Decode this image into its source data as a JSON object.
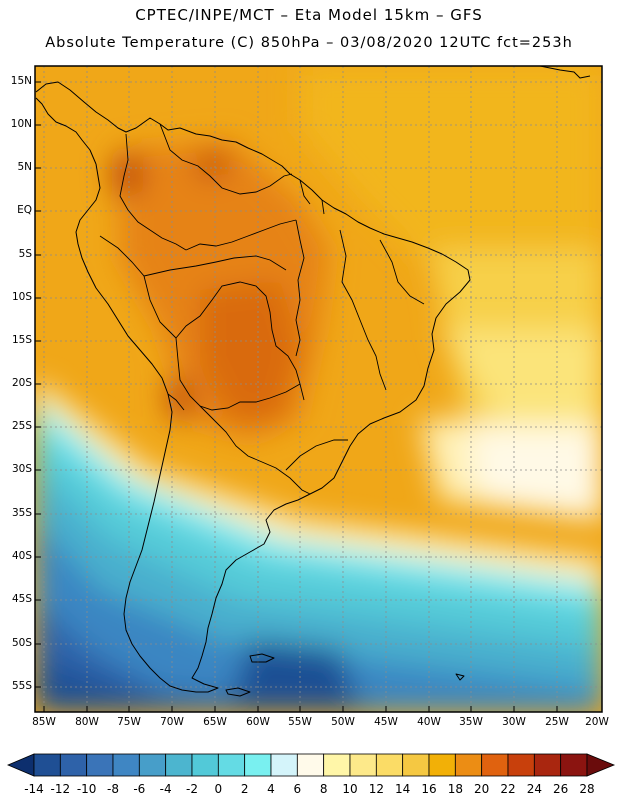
{
  "header": {
    "line1": "CPTEC/INPE/MCT –  Eta Model 15km – GFS",
    "line2": "Absolute Temperature (C) 850hPa – 03/08/2020 12UTC fct=253h"
  },
  "map": {
    "lat_labels": [
      "15N",
      "10N",
      "5N",
      "EQ",
      "5S",
      "10S",
      "15S",
      "20S",
      "25S",
      "30S",
      "35S",
      "40S",
      "45S",
      "50S",
      "55S"
    ],
    "lon_labels": [
      "85W",
      "80W",
      "75W",
      "70W",
      "65W",
      "60W",
      "55W",
      "50W",
      "45W",
      "40W",
      "35W",
      "30W",
      "25W",
      "20W"
    ]
  },
  "colorbar": {
    "labels": [
      "-14",
      "-12",
      "-10",
      "-8",
      "-6",
      "-4",
      "-2",
      "0",
      "2",
      "4",
      "6",
      "8",
      "10",
      "12",
      "14",
      "16",
      "18",
      "20",
      "22",
      "24",
      "26",
      "28"
    ],
    "colors": [
      "#0d2f6e",
      "#1f4f94",
      "#2e62a9",
      "#3a74b8",
      "#3f86c3",
      "#479ec9",
      "#4cb5cf",
      "#52c9d8",
      "#64dbe4",
      "#79f0f0",
      "#d4f4fa",
      "#fffaea",
      "#fff6a8",
      "#fde98a",
      "#fbdc66",
      "#f5c842",
      "#f2b007",
      "#ec8d14",
      "#e0620f",
      "#c8400c",
      "#a9260f",
      "#8b1410",
      "#6a0c0c"
    ]
  }
}
